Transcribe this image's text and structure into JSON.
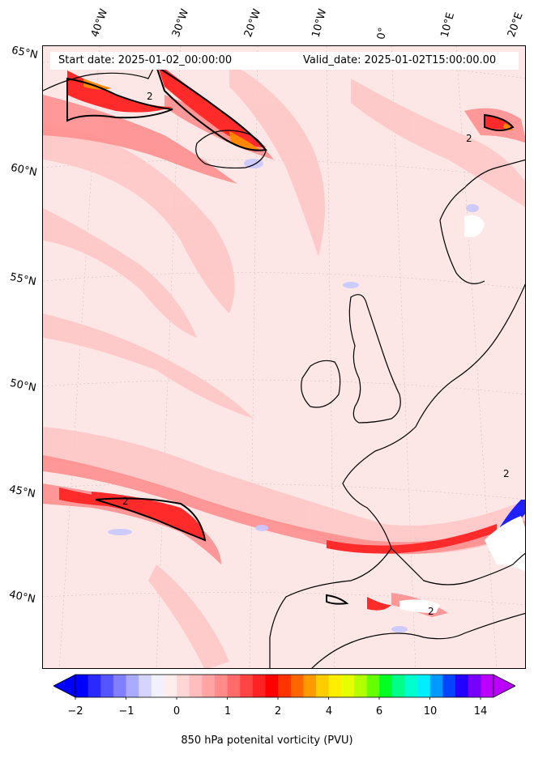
{
  "map": {
    "start_date": "Start date: 2025-01-02_00:00:00",
    "valid_date": "Valid_date: 2025-01-02T15:00:00.00",
    "longitude_labels": [
      "40°W",
      "30°W",
      "20°W",
      "10°W",
      "0°",
      "10°E",
      "20°E"
    ],
    "latitude_labels": [
      "65°N",
      "60°N",
      "55°N",
      "50°N",
      "45°N",
      "40°N"
    ],
    "contour_label": "2",
    "background_color": "#fde6e6",
    "coastline_color": "#000000"
  },
  "colorbar": {
    "label": "850 hPa potenital vorticity (PVU)",
    "ticks": [
      "−2",
      "−1",
      "0",
      "1",
      "2",
      "4",
      "6",
      "10",
      "14"
    ],
    "colors": [
      "#0000ff",
      "#2a2aff",
      "#5555ff",
      "#7f7fff",
      "#aaaaff",
      "#d4d4ff",
      "#f0f0ff",
      "#ffecec",
      "#ffd6d6",
      "#ffbdbd",
      "#ffa3a3",
      "#ff8a8a",
      "#ff6b6b",
      "#ff4444",
      "#ff2222",
      "#ff0000",
      "#ff3300",
      "#ff6600",
      "#ff9900",
      "#ffcc00",
      "#ffee00",
      "#e6ff00",
      "#b3ff00",
      "#66ff00",
      "#00ff22",
      "#00ff88",
      "#00ffcc",
      "#00eeff",
      "#0099ff",
      "#0044ff",
      "#2200ff",
      "#7700ff",
      "#bb00ff"
    ]
  }
}
